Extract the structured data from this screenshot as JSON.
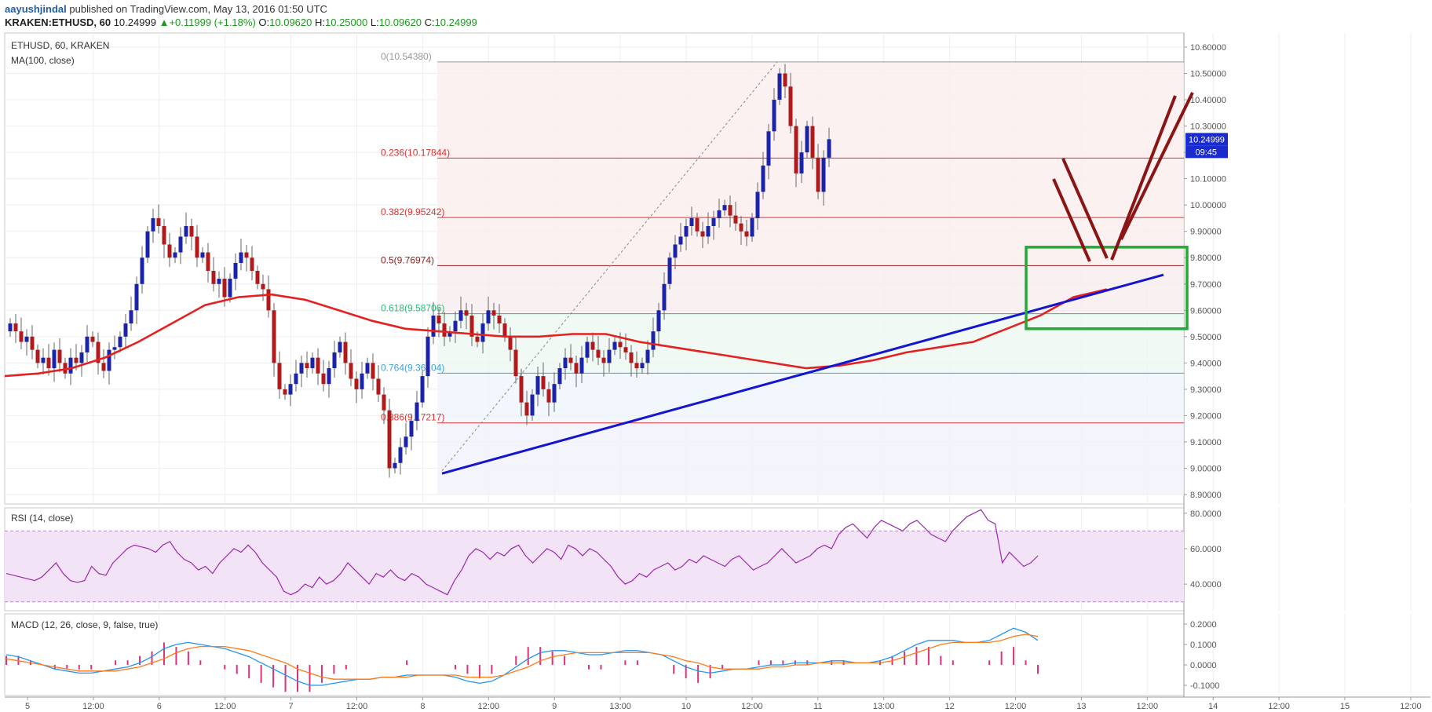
{
  "header": {
    "author": "aayushjindal",
    "published_text": "published on TradingView.com, May 13, 2016 01:50 UTC",
    "symbol_line": "KRAKEN:ETHUSD, 60",
    "last": "10.24999",
    "change_arrow": "▲",
    "change": "+0.11999 (+1.18%)",
    "o_label": "O:",
    "o_value": "10.09620",
    "h_label": "H:",
    "h_value": "10.25000",
    "l_label": "L:",
    "l_value": "10.09620",
    "c_label": "C:",
    "c_value": "10.24999"
  },
  "colors": {
    "up": "#1b24a8",
    "down": "#b11a1a",
    "ma": "#e52020",
    "trendline": "#1515d0",
    "fib_red": "#e03030",
    "fib_dark": "#8b2222",
    "fib_green": "#30b878",
    "fib_blue": "#3fa0d8",
    "box": "#22aa33",
    "arrows": "#8b1414",
    "rsi": "#9c27b0",
    "macd_line": "#2196f3",
    "signal_line": "#ff7a1a",
    "hist": "#e0307a"
  },
  "chart_data": [
    {
      "type": "candlestick",
      "title": "ETHUSD, 60, KRAKEN",
      "indicator_label": "MA(100, close)",
      "ylim": [
        8.9,
        10.6
      ],
      "y_ticks": [
        "10.60000",
        "10.50000",
        "10.40000",
        "10.30000",
        "10.20000",
        "10.10000",
        "10.00000",
        "9.90000",
        "9.80000",
        "9.70000",
        "9.60000",
        "9.50000",
        "9.40000",
        "9.30000",
        "9.20000",
        "9.10000",
        "9.00000",
        "8.90000"
      ],
      "price_badge": "10.24999",
      "timer_badge": "09:45",
      "fib_levels": [
        {
          "label": "0(10.54380)",
          "value": 10.5438,
          "color": "#999999"
        },
        {
          "label": "0.236(10.17844)",
          "value": 10.17844,
          "color": "#e03030"
        },
        {
          "label": "0.382(9.95242)",
          "value": 9.95242,
          "color": "#e03030"
        },
        {
          "label": "0.5(9.76974)",
          "value": 9.76974,
          "color": "#8b2222"
        },
        {
          "label": "0.618(9.58706)",
          "value": 9.58706,
          "color": "#30b878"
        },
        {
          "label": "0.764(9.36104)",
          "value": 9.36104,
          "color": "#3fa0d8"
        },
        {
          "label": "0.886(9.17217)",
          "value": 9.17217,
          "color": "#e03030"
        }
      ],
      "candles_ohlc_close_series": [
        9.55,
        9.52,
        9.48,
        9.5,
        9.45,
        9.4,
        9.42,
        9.38,
        9.45,
        9.4,
        9.36,
        9.42,
        9.4,
        9.44,
        9.5,
        9.48,
        9.4,
        9.37,
        9.45,
        9.46,
        9.5,
        9.55,
        9.6,
        9.7,
        9.8,
        9.9,
        9.95,
        9.92,
        9.85,
        9.8,
        9.82,
        9.88,
        9.92,
        9.88,
        9.8,
        9.82,
        9.75,
        9.7,
        9.72,
        9.65,
        9.72,
        9.78,
        9.82,
        9.8,
        9.75,
        9.7,
        9.68,
        9.6,
        9.4,
        9.3,
        9.28,
        9.32,
        9.36,
        9.4,
        9.38,
        9.42,
        9.36,
        9.32,
        9.38,
        9.44,
        9.48,
        9.4,
        9.34,
        9.3,
        9.36,
        9.4,
        9.34,
        9.28,
        9.22,
        9.0,
        9.02,
        9.08,
        9.12,
        9.18,
        9.25,
        9.35,
        9.5,
        9.58,
        9.55,
        9.5,
        9.52,
        9.56,
        9.6,
        9.58,
        9.5,
        9.48,
        9.55,
        9.6,
        9.58,
        9.55,
        9.5,
        9.45,
        9.35,
        9.25,
        9.2,
        9.28,
        9.35,
        9.3,
        9.25,
        9.32,
        9.38,
        9.42,
        9.4,
        9.36,
        9.42,
        9.48,
        9.45,
        9.42,
        9.4,
        9.45,
        9.48,
        9.46,
        9.44,
        9.4,
        9.38,
        9.4,
        9.45,
        9.52,
        9.6,
        9.7,
        9.8,
        9.85,
        9.88,
        9.92,
        9.95,
        9.9,
        9.88,
        9.92,
        9.95,
        9.98,
        10.0,
        9.96,
        9.93,
        9.9,
        9.88,
        9.95,
        10.05,
        10.15,
        10.28,
        10.4,
        10.5,
        10.45,
        10.3,
        10.12,
        10.2,
        10.3,
        10.18,
        10.05,
        10.18,
        10.24999
      ],
      "ma100_pairs_value": [
        9.35,
        9.36,
        9.38,
        9.42,
        9.48,
        9.55,
        9.62,
        9.65,
        9.66,
        9.64,
        9.6,
        9.56,
        9.53,
        9.52,
        9.51,
        9.5,
        9.5,
        9.51,
        9.51,
        9.48,
        9.46,
        9.44,
        9.42,
        9.4,
        9.38,
        9.39,
        9.41,
        9.44,
        9.46,
        9.48,
        9.53,
        9.58,
        9.65,
        9.68
      ],
      "trendline": {
        "from_price": 8.98,
        "to_price": 9.735
      },
      "forecast_box": {
        "top_price": 9.84,
        "bottom_price": 9.53
      }
    },
    {
      "type": "line",
      "title": "RSI (14, close)",
      "ylim": [
        25,
        83
      ],
      "y_ticks": [
        "80.0000",
        "60.0000",
        "40.0000"
      ],
      "band": [
        30,
        70
      ],
      "values": [
        46,
        45,
        44,
        43,
        42,
        44,
        48,
        52,
        46,
        42,
        41,
        42,
        50,
        46,
        45,
        52,
        56,
        60,
        62,
        61,
        60,
        58,
        62,
        64,
        58,
        54,
        52,
        48,
        50,
        46,
        52,
        56,
        60,
        58,
        62,
        58,
        52,
        48,
        44,
        36,
        34,
        36,
        40,
        38,
        44,
        40,
        42,
        46,
        52,
        48,
        44,
        40,
        46,
        44,
        48,
        44,
        42,
        46,
        44,
        40,
        38,
        36,
        34,
        42,
        48,
        56,
        60,
        58,
        54,
        58,
        56,
        60,
        62,
        56,
        52,
        56,
        60,
        58,
        54,
        62,
        60,
        56,
        60,
        58,
        54,
        50,
        44,
        40,
        42,
        46,
        44,
        48,
        50,
        52,
        48,
        50,
        54,
        52,
        56,
        54,
        52,
        50,
        54,
        56,
        52,
        48,
        50,
        52,
        56,
        60,
        56,
        52,
        54,
        56,
        60,
        62,
        60,
        68,
        72,
        74,
        70,
        66,
        72,
        76,
        74,
        72,
        70,
        74,
        76,
        72,
        68,
        66,
        64,
        70,
        74,
        78,
        80,
        82,
        76,
        74,
        52,
        58,
        54,
        50,
        52,
        56
      ]
    },
    {
      "type": "line",
      "title": "MACD (12, 26, close, 9, false, true)",
      "ylim": [
        -0.15,
        0.25
      ],
      "y_ticks": [
        "0.2000",
        "0.1000",
        "0.0000",
        "-0.1000"
      ],
      "macd": [
        0.05,
        0.04,
        0.02,
        0.0,
        -0.02,
        -0.03,
        -0.04,
        -0.04,
        -0.03,
        -0.02,
        -0.01,
        0.01,
        0.04,
        0.08,
        0.1,
        0.11,
        0.1,
        0.09,
        0.08,
        0.06,
        0.04,
        0.01,
        -0.02,
        -0.05,
        -0.08,
        -0.1,
        -0.1,
        -0.09,
        -0.08,
        -0.07,
        -0.07,
        -0.06,
        -0.06,
        -0.05,
        -0.05,
        -0.05,
        -0.05,
        -0.06,
        -0.08,
        -0.09,
        -0.08,
        -0.05,
        -0.01,
        0.03,
        0.06,
        0.07,
        0.07,
        0.06,
        0.05,
        0.05,
        0.06,
        0.07,
        0.07,
        0.06,
        0.05,
        0.02,
        -0.01,
        -0.03,
        -0.04,
        -0.03,
        -0.02,
        -0.02,
        -0.01,
        0.0,
        0.0,
        0.01,
        0.01,
        0.01,
        0.02,
        0.02,
        0.01,
        0.01,
        0.02,
        0.04,
        0.07,
        0.1,
        0.12,
        0.12,
        0.12,
        0.11,
        0.11,
        0.12,
        0.15,
        0.18,
        0.16,
        0.12
      ],
      "signal": [
        0.03,
        0.02,
        0.01,
        0.0,
        -0.01,
        -0.02,
        -0.03,
        -0.03,
        -0.03,
        -0.03,
        -0.02,
        -0.01,
        0.01,
        0.03,
        0.06,
        0.08,
        0.09,
        0.09,
        0.09,
        0.08,
        0.07,
        0.05,
        0.03,
        0.01,
        -0.02,
        -0.04,
        -0.06,
        -0.07,
        -0.07,
        -0.07,
        -0.07,
        -0.06,
        -0.06,
        -0.06,
        -0.05,
        -0.05,
        -0.05,
        -0.05,
        -0.06,
        -0.06,
        -0.06,
        -0.05,
        -0.03,
        -0.01,
        0.02,
        0.04,
        0.05,
        0.06,
        0.06,
        0.06,
        0.06,
        0.06,
        0.06,
        0.06,
        0.05,
        0.04,
        0.02,
        0.01,
        -0.01,
        -0.02,
        -0.02,
        -0.02,
        -0.02,
        -0.01,
        -0.01,
        0.0,
        0.0,
        0.01,
        0.01,
        0.01,
        0.01,
        0.01,
        0.01,
        0.02,
        0.04,
        0.06,
        0.08,
        0.1,
        0.11,
        0.11,
        0.11,
        0.11,
        0.12,
        0.14,
        0.15,
        0.14
      ]
    }
  ],
  "x_axis": {
    "labels": [
      "5",
      "12:00",
      "6",
      "12:00",
      "7",
      "12:00",
      "8",
      "12:00",
      "9",
      "13:00",
      "10",
      "12:00",
      "11",
      "13:00",
      "12",
      "12:00",
      "13",
      "12:00",
      "14",
      "12:00",
      "15",
      "12:00"
    ]
  }
}
